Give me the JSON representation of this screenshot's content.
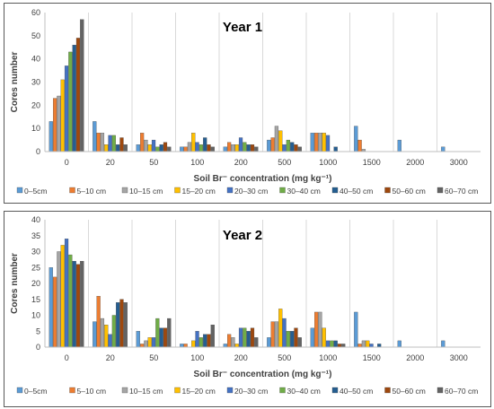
{
  "colors": [
    "#5b9bd5",
    "#ed7d31",
    "#a5a5a5",
    "#ffc000",
    "#4472c4",
    "#70ad47",
    "#255e91",
    "#9e480e",
    "#636363"
  ],
  "chart_data": [
    {
      "type": "bar",
      "title": "Year 1",
      "xlabel": "Soil Br⁻ concentration (mg kg⁻¹)",
      "ylabel": "Cores number",
      "ylim": [
        0,
        60
      ],
      "yticks": [
        0,
        10,
        20,
        30,
        40,
        50,
        60
      ],
      "grid": "vertical category separators",
      "legend_position": "bottom",
      "categories": [
        "0",
        "20",
        "50",
        "100",
        "200",
        "500",
        "1000",
        "1500",
        "2000",
        "3000"
      ],
      "series": [
        {
          "name": "0–5cm",
          "values": [
            13,
            13,
            3,
            2,
            2,
            5,
            8,
            11,
            5,
            2
          ]
        },
        {
          "name": "5–10 cm",
          "values": [
            23,
            8,
            8,
            2,
            4,
            6,
            8,
            5,
            0,
            0
          ]
        },
        {
          "name": "10–15 cm",
          "values": [
            24,
            8,
            5,
            4,
            3,
            11,
            8,
            1,
            0,
            0
          ]
        },
        {
          "name": "15–20 cm",
          "values": [
            31,
            3,
            3,
            8,
            3,
            9,
            8,
            0,
            0,
            0
          ]
        },
        {
          "name": "20–30 cm",
          "values": [
            37,
            7,
            5,
            4,
            6,
            3,
            7,
            0,
            0,
            0
          ]
        },
        {
          "name": "30–40 cm",
          "values": [
            43,
            7,
            2,
            3,
            4,
            5,
            0,
            0,
            0,
            0
          ]
        },
        {
          "name": "40–50 cm",
          "values": [
            46,
            3,
            3,
            6,
            3,
            4,
            2,
            0,
            0,
            0
          ]
        },
        {
          "name": "50–60 cm",
          "values": [
            49,
            6,
            4,
            3,
            3,
            3,
            0,
            0,
            0,
            0
          ]
        },
        {
          "name": "60–70 cm",
          "values": [
            57,
            3,
            2,
            2,
            2,
            2,
            0,
            0,
            0,
            0
          ]
        }
      ]
    },
    {
      "type": "bar",
      "title": "Year 2",
      "xlabel": "Soil Br⁻ concentration (mg kg⁻¹)",
      "ylabel": "Cores number",
      "ylim": [
        0,
        40
      ],
      "yticks": [
        0,
        5,
        10,
        15,
        20,
        25,
        30,
        35,
        40
      ],
      "grid": "vertical category separators",
      "legend_position": "bottom",
      "categories": [
        "0",
        "20",
        "50",
        "100",
        "200",
        "500",
        "1000",
        "1500",
        "2000",
        "3000"
      ],
      "series": [
        {
          "name": "0–5cm",
          "values": [
            25,
            8,
            5,
            1,
            1,
            3,
            6,
            11,
            2,
            2
          ]
        },
        {
          "name": "5–10 cm",
          "values": [
            22,
            16,
            1,
            1,
            4,
            8,
            11,
            1,
            0,
            0
          ]
        },
        {
          "name": "10–15 cm",
          "values": [
            30,
            9,
            2,
            0,
            3,
            8,
            11,
            2,
            0,
            0
          ]
        },
        {
          "name": "15–20 cm",
          "values": [
            32,
            7,
            3,
            2,
            1,
            12,
            6,
            2,
            0,
            0
          ]
        },
        {
          "name": "20–30 cm",
          "values": [
            34,
            4,
            3,
            5,
            6,
            9,
            2,
            1,
            0,
            0
          ]
        },
        {
          "name": "30–40 cm",
          "values": [
            29,
            10,
            9,
            3,
            6,
            5,
            2,
            0,
            0,
            0
          ]
        },
        {
          "name": "40–50 cm",
          "values": [
            27,
            14,
            6,
            4,
            5,
            5,
            2,
            1,
            0,
            0
          ]
        },
        {
          "name": "50–60 cm",
          "values": [
            26,
            15,
            6,
            4,
            6,
            6,
            1,
            0,
            0,
            0
          ]
        },
        {
          "name": "60–70 cm",
          "values": [
            27,
            14,
            9,
            7,
            3,
            3,
            1,
            0,
            0,
            0
          ]
        }
      ]
    }
  ]
}
